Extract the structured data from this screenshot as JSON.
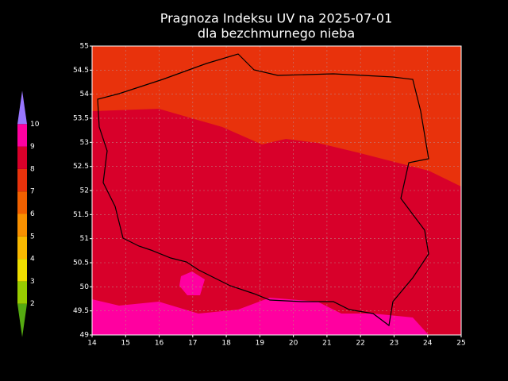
{
  "map": {
    "title": "Pragnoza Indeksu UV na 2025-07-01",
    "subtitle": "dla bezchmurnego nieba",
    "xlim": [
      14,
      25
    ],
    "ylim": [
      49,
      55
    ],
    "xticks": [
      14,
      15,
      16,
      17,
      18,
      19,
      20,
      21,
      22,
      23,
      24,
      25
    ],
    "yticks": [
      49,
      49.5,
      50,
      50.5,
      51,
      51.5,
      52,
      52.5,
      53,
      53.5,
      54,
      54.5,
      55
    ],
    "grid": true,
    "colorbar": {
      "levels": [
        2,
        3,
        4,
        5,
        6,
        7,
        8,
        9,
        10
      ],
      "colors": [
        "#55aa11",
        "#99cc00",
        "#eedd00",
        "#f8b800",
        "#f89000",
        "#f06000",
        "#e8320c",
        "#d8002a",
        "#ff00a0",
        "#9977ff"
      ]
    }
  }
}
